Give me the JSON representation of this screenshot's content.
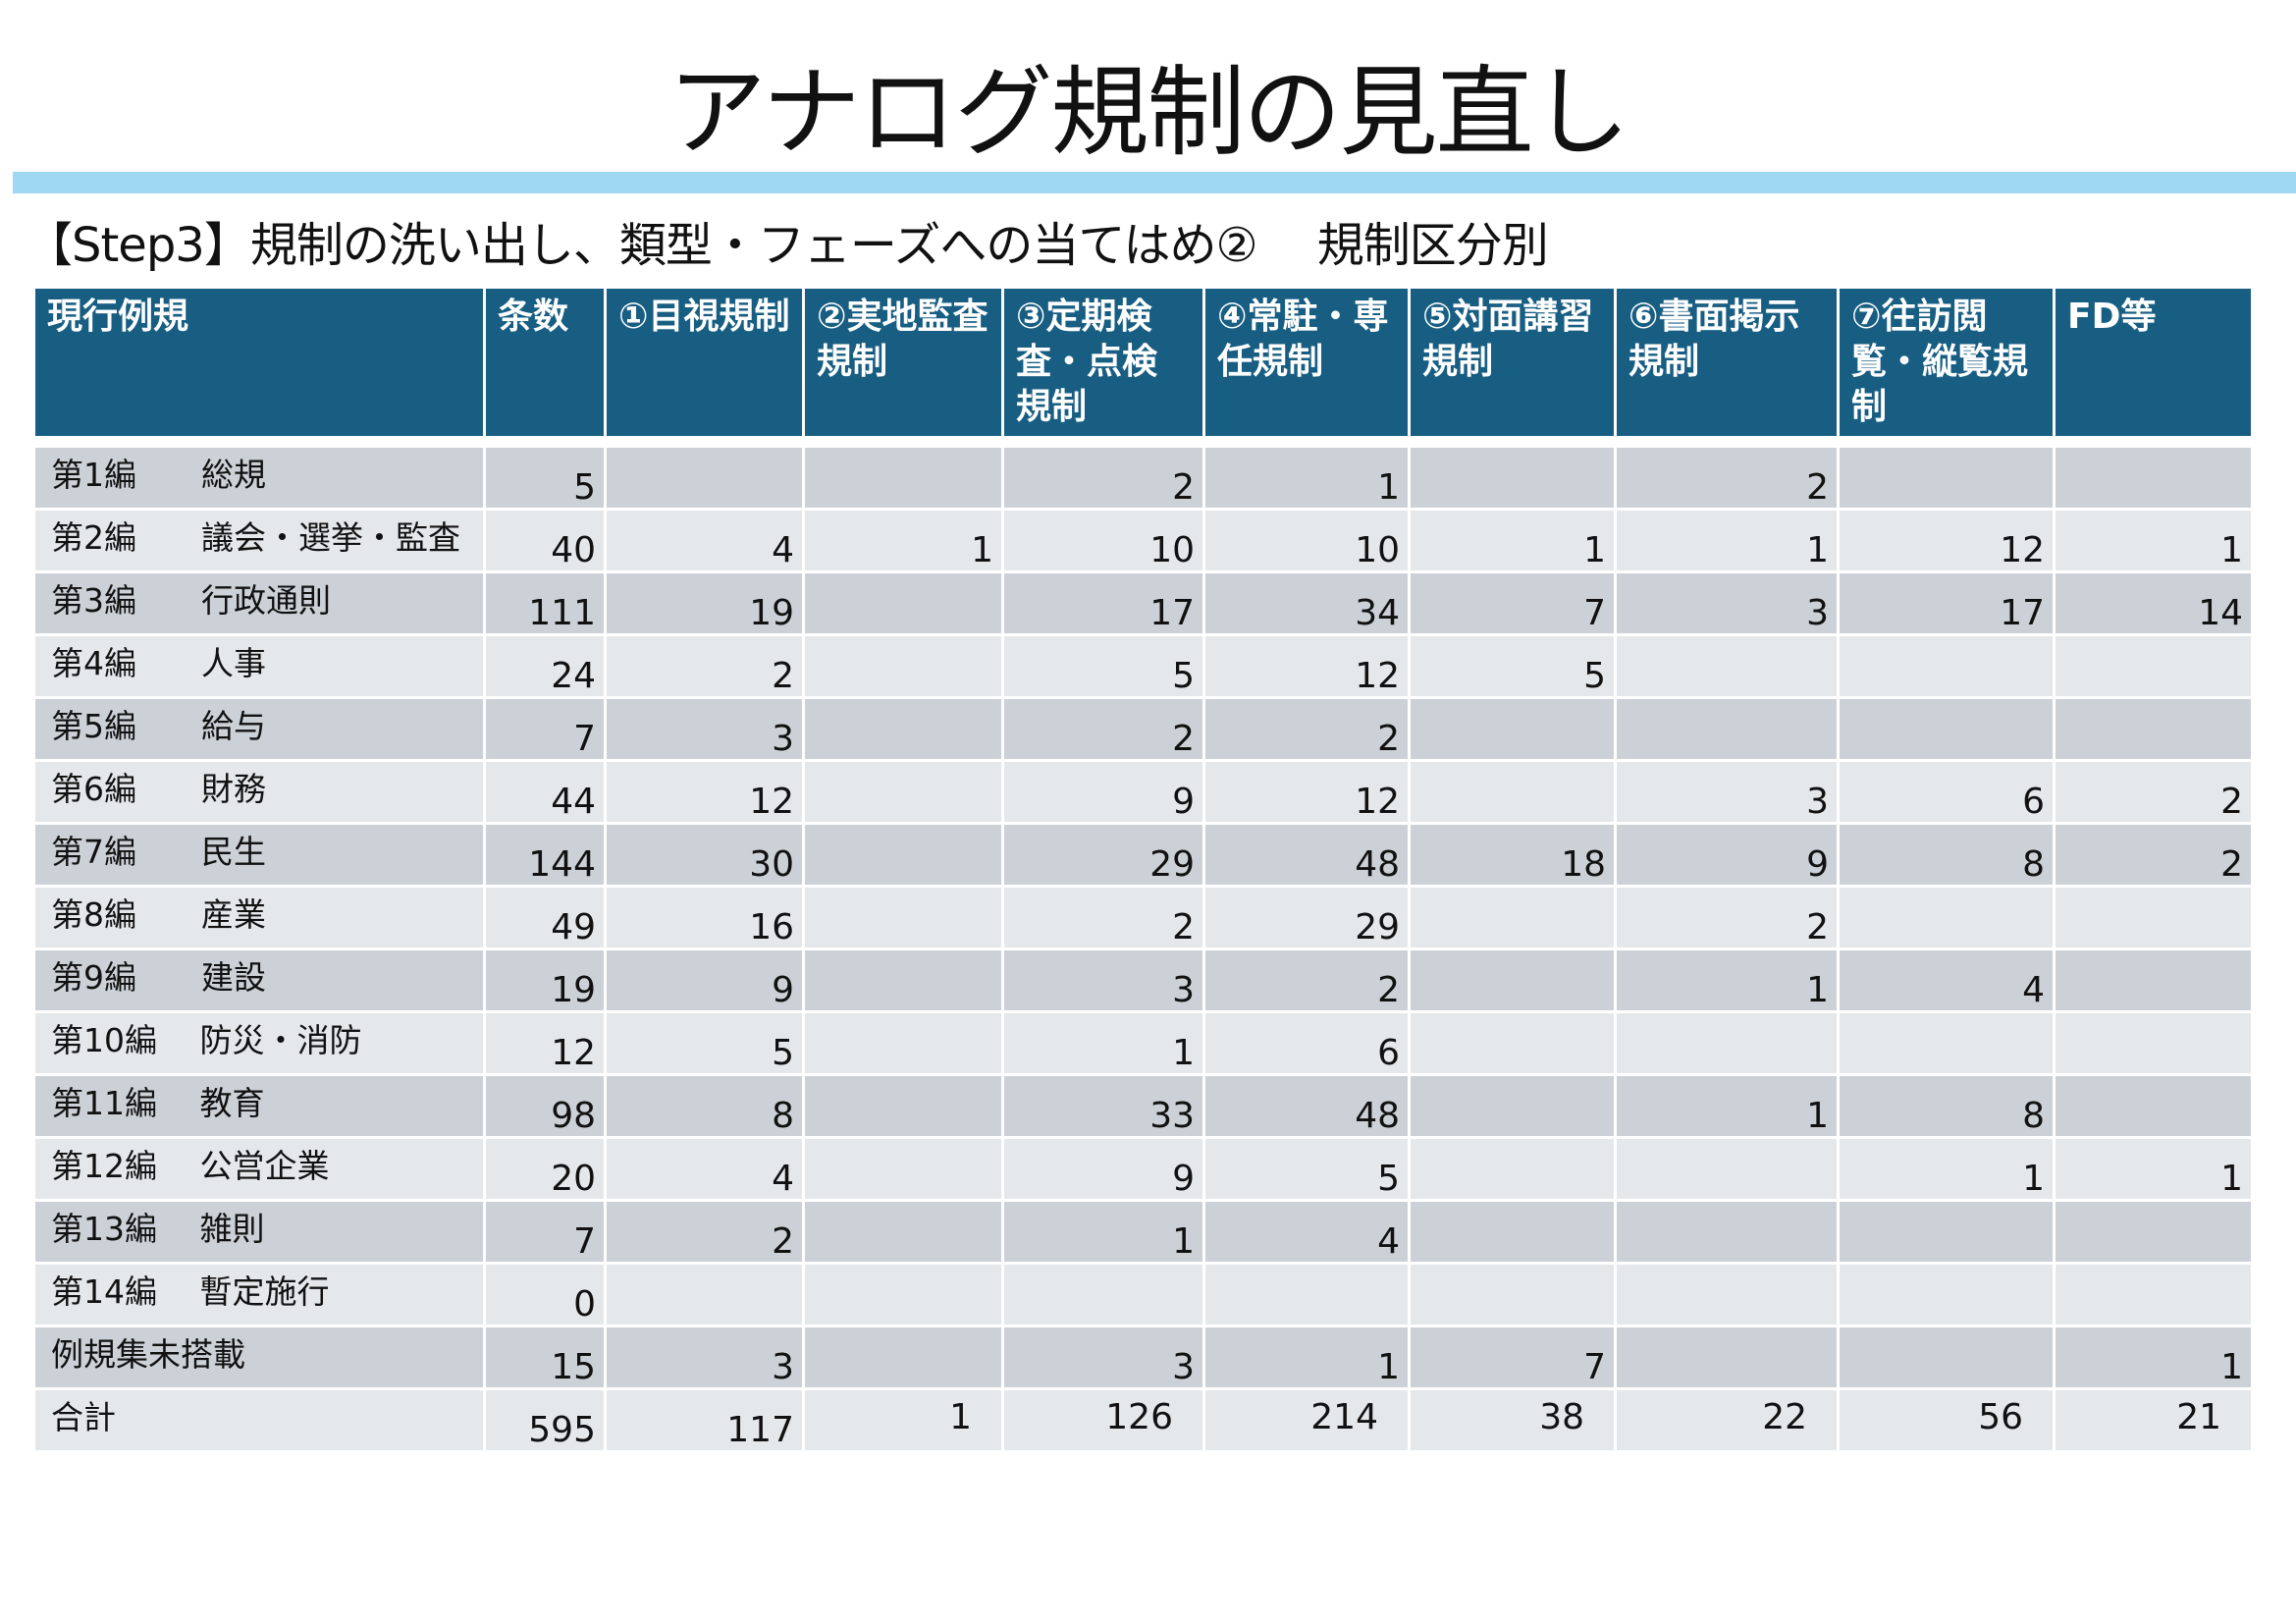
{
  "title": "アナログ規制の見直し",
  "subtitle": "【Step3】規制の洗い出し、類型・フェーズへの当てはめ②　 規制区分別",
  "colors": {
    "header": "#185e82",
    "title_bar": "#9ed8f2",
    "row_dark": "#ccd1d8",
    "row_light": "#e5e8eb"
  },
  "table": {
    "headers": [
      "現行例規",
      "条数",
      "①目視規制",
      "②実地監査規制",
      "③定期検査・点検規制",
      "④常駐・専任規制",
      "⑤対面講習規制",
      "⑥書面掲示規制",
      "⑦往訪閲覧・縦覧規制",
      "FD等"
    ],
    "rows": [
      {
        "label": "第1編　　総規",
        "values": [
          "5",
          "",
          "",
          "2",
          "1",
          "",
          "2",
          "",
          ""
        ]
      },
      {
        "label": "第2編　　議会・選挙・監査",
        "values": [
          "40",
          "4",
          "1",
          "10",
          "10",
          "1",
          "1",
          "12",
          "1"
        ]
      },
      {
        "label": "第3編　　行政通則",
        "values": [
          "111",
          "19",
          "",
          "17",
          "34",
          "7",
          "3",
          "17",
          "14"
        ]
      },
      {
        "label": "第4編　　人事",
        "values": [
          "24",
          "2",
          "",
          "5",
          "12",
          "5",
          "",
          "",
          ""
        ]
      },
      {
        "label": "第5編　　給与",
        "values": [
          "7",
          "3",
          "",
          "2",
          "2",
          "",
          "",
          "",
          ""
        ]
      },
      {
        "label": "第6編　　財務",
        "values": [
          "44",
          "12",
          "",
          "9",
          "12",
          "",
          "3",
          "6",
          "2"
        ]
      },
      {
        "label": "第7編　　民生",
        "values": [
          "144",
          "30",
          "",
          "29",
          "48",
          "18",
          "9",
          "8",
          "2"
        ]
      },
      {
        "label": "第8編　　産業",
        "values": [
          "49",
          "16",
          "",
          "2",
          "29",
          "",
          "2",
          "",
          ""
        ]
      },
      {
        "label": "第9編　　建設",
        "values": [
          "19",
          "9",
          "",
          "3",
          "2",
          "",
          "1",
          "4",
          ""
        ]
      },
      {
        "label": "第10編　 防災・消防",
        "values": [
          "12",
          "5",
          "",
          "1",
          "6",
          "",
          "",
          "",
          ""
        ]
      },
      {
        "label": "第11編　 教育",
        "values": [
          "98",
          "8",
          "",
          "33",
          "48",
          "",
          "1",
          "8",
          ""
        ]
      },
      {
        "label": "第12編　 公営企業",
        "values": [
          "20",
          "4",
          "",
          "9",
          "5",
          "",
          "",
          "1",
          "1"
        ]
      },
      {
        "label": "第13編　 雑則",
        "values": [
          "7",
          "2",
          "",
          "1",
          "4",
          "",
          "",
          "",
          ""
        ]
      },
      {
        "label": "第14編　 暫定施行",
        "values": [
          "0",
          "",
          "",
          "",
          "",
          "",
          "",
          "",
          ""
        ]
      },
      {
        "label": "例規集未搭載",
        "values": [
          "15",
          "3",
          "",
          "3",
          "1",
          "7",
          "",
          "",
          "1"
        ]
      },
      {
        "label": "合計",
        "values": [
          "595",
          "117",
          "1",
          "126",
          "214",
          "38",
          "22",
          "56",
          "21"
        ]
      }
    ]
  }
}
